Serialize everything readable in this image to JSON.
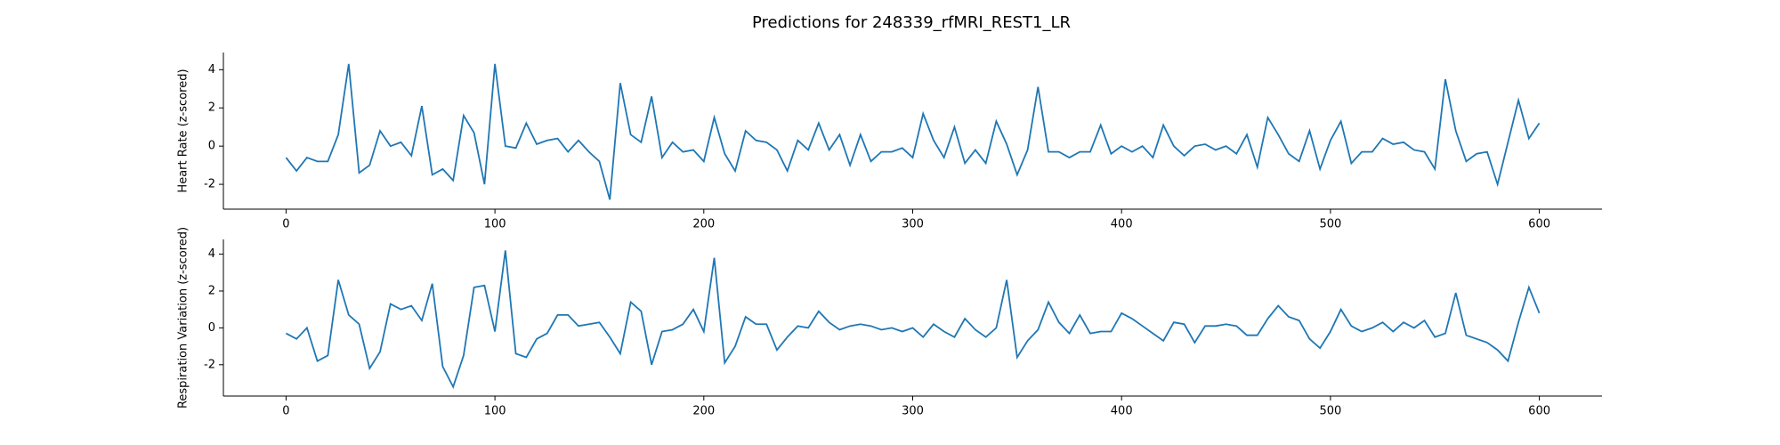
{
  "title": "Predictions for 248339_rfMRI_REST1_LR",
  "chart_data": [
    {
      "type": "line",
      "y_label": "Heart Rate (z-scored)",
      "xlim": [
        -30,
        630
      ],
      "ylim": [
        -3.3,
        4.9
      ],
      "xticks": [
        0,
        100,
        200,
        300,
        400,
        500,
        600
      ],
      "yticks": [
        -2,
        0,
        2,
        4
      ],
      "x": [
        0,
        5,
        10,
        15,
        20,
        25,
        30,
        35,
        40,
        45,
        50,
        55,
        60,
        65,
        70,
        75,
        80,
        85,
        90,
        95,
        100,
        105,
        110,
        115,
        120,
        125,
        130,
        135,
        140,
        145,
        150,
        155,
        160,
        165,
        170,
        175,
        180,
        185,
        190,
        195,
        200,
        205,
        210,
        215,
        220,
        225,
        230,
        235,
        240,
        245,
        250,
        255,
        260,
        265,
        270,
        275,
        280,
        285,
        290,
        295,
        300,
        305,
        310,
        315,
        320,
        325,
        330,
        335,
        340,
        345,
        350,
        355,
        360,
        365,
        370,
        375,
        380,
        385,
        390,
        395,
        400,
        405,
        410,
        415,
        420,
        425,
        430,
        435,
        440,
        445,
        450,
        455,
        460,
        465,
        470,
        475,
        480,
        485,
        490,
        495,
        500,
        505,
        510,
        515,
        520,
        525,
        530,
        535,
        540,
        545,
        550,
        555,
        560,
        565,
        570,
        575,
        580,
        585,
        590,
        595,
        600
      ],
      "series": [
        {
          "color": "#1f77b4",
          "values": [
            -0.6,
            -1.3,
            -0.6,
            -0.8,
            -0.8,
            0.6,
            4.3,
            -1.4,
            -1.0,
            0.8,
            0.0,
            0.2,
            -0.5,
            2.1,
            -1.5,
            -1.2,
            -1.8,
            1.6,
            0.7,
            -2.0,
            4.3,
            0.0,
            -0.1,
            1.2,
            0.1,
            0.3,
            0.4,
            -0.3,
            0.3,
            -0.3,
            -0.8,
            -2.8,
            3.3,
            0.6,
            0.2,
            2.6,
            -0.6,
            0.2,
            -0.3,
            -0.2,
            -0.8,
            1.5,
            -0.4,
            -1.3,
            0.8,
            0.3,
            0.2,
            -0.2,
            -1.3,
            0.3,
            -0.2,
            1.2,
            -0.2,
            0.6,
            -1.0,
            0.6,
            -0.8,
            -0.3,
            -0.3,
            -0.1,
            -0.6,
            1.7,
            0.3,
            -0.6,
            1.0,
            -0.9,
            -0.2,
            -0.9,
            1.3,
            0.1,
            -1.5,
            -0.2,
            3.1,
            -0.3,
            -0.3,
            -0.6,
            -0.3,
            -0.3,
            1.1,
            -0.4,
            0.0,
            -0.3,
            0.0,
            -0.6,
            1.1,
            0.0,
            -0.5,
            0.0,
            0.1,
            -0.2,
            0.0,
            -0.4,
            0.6,
            -1.1,
            1.5,
            0.6,
            -0.4,
            -0.8,
            0.8,
            -1.2,
            0.3,
            1.3,
            -0.9,
            -0.3,
            -0.3,
            0.4,
            0.1,
            0.2,
            -0.2,
            -0.3,
            -1.2,
            3.5,
            0.8,
            -0.8,
            -0.4,
            -0.3,
            -2.0,
            0.2,
            2.4,
            0.4,
            1.2
          ]
        }
      ]
    },
    {
      "type": "line",
      "y_label": "Respiration Variation (z-scored)",
      "xlim": [
        -30,
        630
      ],
      "ylim": [
        -3.7,
        4.8
      ],
      "xticks": [
        0,
        100,
        200,
        300,
        400,
        500,
        600
      ],
      "yticks": [
        -2,
        0,
        2,
        4
      ],
      "x": [
        0,
        5,
        10,
        15,
        20,
        25,
        30,
        35,
        40,
        45,
        50,
        55,
        60,
        65,
        70,
        75,
        80,
        85,
        90,
        95,
        100,
        105,
        110,
        115,
        120,
        125,
        130,
        135,
        140,
        145,
        150,
        155,
        160,
        165,
        170,
        175,
        180,
        185,
        190,
        195,
        200,
        205,
        210,
        215,
        220,
        225,
        230,
        235,
        240,
        245,
        250,
        255,
        260,
        265,
        270,
        275,
        280,
        285,
        290,
        295,
        300,
        305,
        310,
        315,
        320,
        325,
        330,
        335,
        340,
        345,
        350,
        355,
        360,
        365,
        370,
        375,
        380,
        385,
        390,
        395,
        400,
        405,
        410,
        415,
        420,
        425,
        430,
        435,
        440,
        445,
        450,
        455,
        460,
        465,
        470,
        475,
        480,
        485,
        490,
        495,
        500,
        505,
        510,
        515,
        520,
        525,
        530,
        535,
        540,
        545,
        550,
        555,
        560,
        565,
        570,
        575,
        580,
        585,
        590,
        595,
        600
      ],
      "series": [
        {
          "color": "#1f77b4",
          "values": [
            -0.3,
            -0.6,
            0.0,
            -1.8,
            -1.5,
            2.6,
            0.7,
            0.2,
            -2.2,
            -1.3,
            1.3,
            1.0,
            1.2,
            0.4,
            2.4,
            -2.1,
            -3.2,
            -1.5,
            2.2,
            2.3,
            -0.2,
            4.2,
            -1.4,
            -1.6,
            -0.6,
            -0.3,
            0.7,
            0.7,
            0.1,
            0.2,
            0.3,
            -0.5,
            -1.4,
            1.4,
            0.9,
            -2.0,
            -0.2,
            -0.1,
            0.2,
            1.0,
            -0.2,
            3.8,
            -1.9,
            -1.0,
            0.6,
            0.2,
            0.2,
            -1.2,
            -0.5,
            0.1,
            0.0,
            0.9,
            0.3,
            -0.1,
            0.1,
            0.2,
            0.1,
            -0.1,
            0.0,
            -0.2,
            0.0,
            -0.5,
            0.2,
            -0.2,
            -0.5,
            0.5,
            -0.1,
            -0.5,
            0.0,
            2.6,
            -1.6,
            -0.7,
            -0.1,
            1.4,
            0.3,
            -0.3,
            0.7,
            -0.3,
            -0.2,
            -0.2,
            0.8,
            0.5,
            0.1,
            -0.3,
            -0.7,
            0.3,
            0.2,
            -0.8,
            0.1,
            0.1,
            0.2,
            0.1,
            -0.4,
            -0.4,
            0.5,
            1.2,
            0.6,
            0.4,
            -0.6,
            -1.1,
            -0.2,
            1.0,
            0.1,
            -0.2,
            0.0,
            0.3,
            -0.2,
            0.3,
            0.0,
            0.4,
            -0.5,
            -0.3,
            1.9,
            -0.4,
            -0.6,
            -0.8,
            -1.2,
            -1.8,
            0.3,
            2.2,
            0.8
          ]
        }
      ]
    }
  ]
}
